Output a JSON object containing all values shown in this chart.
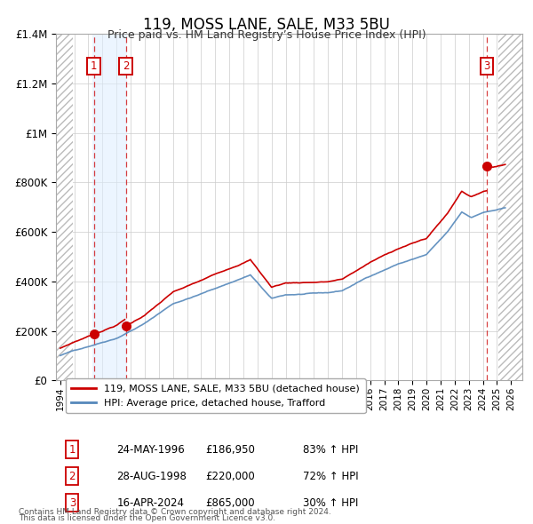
{
  "title": "119, MOSS LANE, SALE, M33 5BU",
  "subtitle": "Price paid vs. HM Land Registry’s House Price Index (HPI)",
  "sales": [
    {
      "id": 1,
      "date": "24-MAY-1996",
      "price": 186950,
      "pct": "83%",
      "year": 1996.38
    },
    {
      "id": 2,
      "date": "28-AUG-1998",
      "price": 220000,
      "pct": "72%",
      "year": 1998.65
    },
    {
      "id": 3,
      "date": "16-APR-2024",
      "price": 865000,
      "pct": "30%",
      "year": 2024.29
    }
  ],
  "legend_line1": "119, MOSS LANE, SALE, M33 5BU (detached house)",
  "legend_line2": "HPI: Average price, detached house, Trafford",
  "table_rows": [
    [
      "1",
      "24-MAY-1996",
      "£186,950",
      "83% ↑ HPI"
    ],
    [
      "2",
      "28-AUG-1998",
      "£220,000",
      "72% ↑ HPI"
    ],
    [
      "3",
      "16-APR-2024",
      "£865,000",
      "30% ↑ HPI"
    ]
  ],
  "footer1": "Contains HM Land Registry data © Crown copyright and database right 2024.",
  "footer2": "This data is licensed under the Open Government Licence v3.0.",
  "red_color": "#cc0000",
  "blue_color": "#5588bb",
  "shade_color": "#ddeeff",
  "ylim": [
    0,
    1400000
  ],
  "yticks": [
    0,
    200000,
    400000,
    600000,
    800000,
    1000000,
    1200000,
    1400000
  ],
  "ytick_labels": [
    "£0",
    "£200K",
    "£400K",
    "£600K",
    "£800K",
    "£1M",
    "£1.2M",
    "£1.4M"
  ],
  "xlim_left": 1993.7,
  "xlim_right": 2026.8,
  "hatch_left_end": 1994.92,
  "hatch_right_start": 2025.08
}
